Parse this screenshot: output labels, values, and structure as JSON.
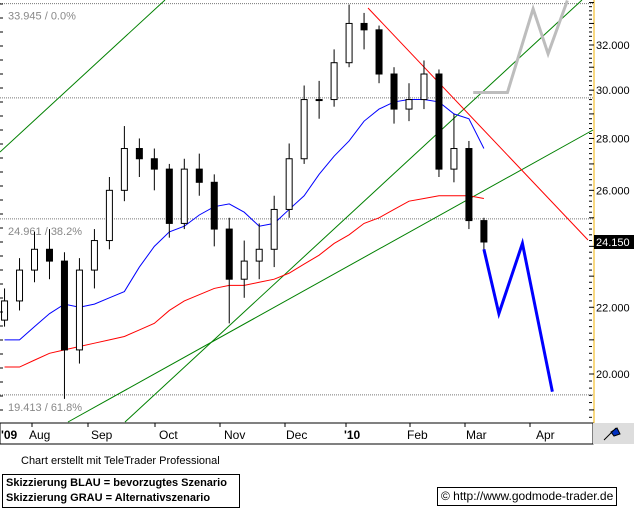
{
  "chart_data": {
    "type": "candlestick",
    "y_scale": "log",
    "ylim": [
      18.6,
      34.1
    ],
    "y_ticks": [
      "32.000",
      "30.000",
      "28.000",
      "26.000",
      "22.000",
      "20.000"
    ],
    "y_tick_values": [
      32,
      30,
      28,
      26,
      22,
      20
    ],
    "x_labels": [
      "'09",
      "Aug",
      "Sep",
      "Oct",
      "Nov",
      "Dec",
      "'10",
      "Feb",
      "Mar",
      "Apr"
    ],
    "last_price_label": "24.150",
    "last_price": 24.15,
    "fib_levels": [
      {
        "price": 33.945,
        "label": "33.945 / 0.0%"
      },
      {
        "price": 29.67,
        "label": ""
      },
      {
        "price": 24.961,
        "label": "24.961 / 38.2%"
      },
      {
        "price": 19.413,
        "label": "19.413 / 61.8%"
      }
    ],
    "ohlc_columns": [
      "date",
      "open",
      "high",
      "low",
      "close"
    ],
    "ohlc": [
      [
        "2009-07-24",
        21.6,
        22.6,
        21.4,
        22.2
      ],
      [
        "2009-07-31",
        22.2,
        23.6,
        21.9,
        23.2
      ],
      [
        "2009-08-07",
        23.2,
        24.5,
        22.8,
        23.9
      ],
      [
        "2009-08-14",
        23.9,
        24.6,
        22.9,
        23.5
      ],
      [
        "2009-08-21",
        23.5,
        23.8,
        19.3,
        20.7
      ],
      [
        "2009-08-28",
        20.7,
        23.6,
        20.3,
        23.2
      ],
      [
        "2009-09-04",
        23.2,
        24.6,
        22.6,
        24.2
      ],
      [
        "2009-09-11",
        24.2,
        26.5,
        23.9,
        26.0
      ],
      [
        "2009-09-18",
        26.0,
        28.5,
        25.6,
        27.6
      ],
      [
        "2009-09-25",
        27.6,
        28.0,
        26.5,
        27.2
      ],
      [
        "2009-10-02",
        27.2,
        27.6,
        26.0,
        26.8
      ],
      [
        "2009-10-09",
        26.8,
        27.0,
        24.3,
        24.8
      ],
      [
        "2009-10-16",
        24.8,
        27.2,
        24.6,
        26.8
      ],
      [
        "2009-10-23",
        26.8,
        27.4,
        25.8,
        26.3
      ],
      [
        "2009-10-30",
        26.3,
        26.6,
        24.0,
        24.6
      ],
      [
        "2009-11-06",
        24.6,
        25.0,
        21.5,
        22.9
      ],
      [
        "2009-11-13",
        22.9,
        24.2,
        22.3,
        23.5
      ],
      [
        "2009-11-20",
        23.5,
        24.8,
        22.9,
        23.9
      ],
      [
        "2009-11-27",
        23.9,
        25.8,
        23.3,
        25.3
      ],
      [
        "2009-12-04",
        25.3,
        27.8,
        25.0,
        27.2
      ],
      [
        "2009-12-11",
        27.2,
        30.2,
        27.0,
        29.6
      ],
      [
        "2009-12-18",
        29.6,
        30.4,
        28.8,
        29.6
      ],
      [
        "2009-12-25",
        29.6,
        31.8,
        29.3,
        31.2
      ],
      [
        "2010-01-01",
        31.2,
        33.9,
        31.0,
        33.0
      ],
      [
        "2010-01-08",
        33.0,
        33.5,
        31.8,
        32.7
      ],
      [
        "2010-01-15",
        32.7,
        32.9,
        30.3,
        30.7
      ],
      [
        "2010-01-22",
        30.7,
        31.0,
        28.6,
        29.2
      ],
      [
        "2010-01-29",
        29.2,
        30.3,
        28.7,
        29.6
      ],
      [
        "2010-02-05",
        29.6,
        31.3,
        29.2,
        30.7
      ],
      [
        "2010-02-12",
        30.7,
        30.9,
        26.5,
        26.8
      ],
      [
        "2010-02-19",
        26.8,
        29.0,
        26.3,
        27.6
      ],
      [
        "2010-02-26",
        27.6,
        27.9,
        24.6,
        24.9
      ],
      [
        "2010-03-05",
        24.9,
        25.0,
        23.8,
        24.15
      ]
    ],
    "ma_blue": [
      21.0,
      21.0,
      21.4,
      21.8,
      22.1,
      22.0,
      22.1,
      22.3,
      22.5,
      23.3,
      24.0,
      24.5,
      24.7,
      25.1,
      25.4,
      25.5,
      25.2,
      24.7,
      24.8,
      25.3,
      25.8,
      26.6,
      27.3,
      27.9,
      28.7,
      29.2,
      29.5,
      29.6,
      29.6,
      29.5,
      29.0,
      28.8,
      27.6
    ],
    "ma_red": [
      20.2,
      20.2,
      20.4,
      20.6,
      20.7,
      20.8,
      20.9,
      21.0,
      21.1,
      21.3,
      21.5,
      21.9,
      22.2,
      22.4,
      22.6,
      22.7,
      22.7,
      22.8,
      22.9,
      23.1,
      23.4,
      23.7,
      24.1,
      24.4,
      24.8,
      25.0,
      25.3,
      25.6,
      25.7,
      25.8,
      25.8,
      25.8,
      25.7
    ],
    "scenario_blue": [
      [
        "2010-03-05",
        23.9
      ],
      [
        "2010-03-12",
        21.8
      ],
      [
        "2010-03-23",
        24.1
      ],
      [
        "2010-04-06",
        19.5
      ]
    ],
    "scenario_gray": [
      [
        "2010-02-28",
        29.9
      ],
      [
        "2010-03-16",
        29.9
      ],
      [
        "2010-03-28",
        33.7
      ],
      [
        "2010-04-04",
        31.6
      ],
      [
        "2010-04-13",
        34.1
      ]
    ],
    "colors": {
      "ma_short": "#0000ff",
      "ma_long": "#ff0000",
      "trendline": "#008000",
      "resistance": "#ff0000",
      "scenario_blue": "#0000ff",
      "scenario_gray": "#bdbdbd",
      "axis_border": "#f0b000"
    }
  },
  "footer": {
    "credit": "Chart erstellt mit TeleTrader Professional",
    "legend_blue": "Skizzierung BLAU = bevorzugtes Szenario",
    "legend_gray": "Skizzierung GRAU = Alternativszenario",
    "copyright": "© http://www.godmode-trader.de"
  }
}
